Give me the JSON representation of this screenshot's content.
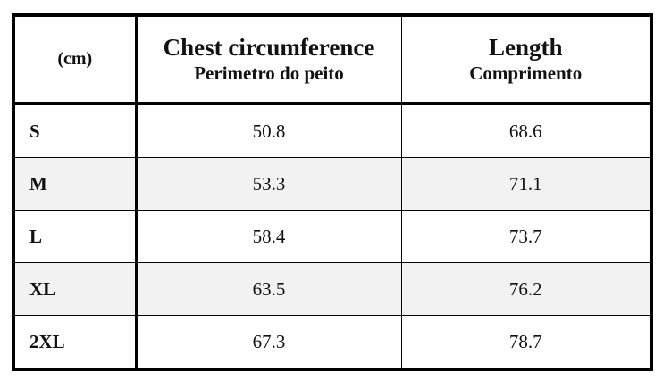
{
  "table": {
    "header": [
      "(cm)",
      {
        "title": "Chest circumference",
        "subtitle": "Perimetro do peito"
      },
      {
        "title": "Length",
        "subtitle": "Comprimento"
      }
    ],
    "rows": [
      [
        "S",
        50.8,
        68.6
      ],
      [
        "M",
        53.3,
        71.1
      ],
      [
        "L",
        58.4,
        73.7
      ],
      [
        "XL",
        63.5,
        76.2
      ],
      [
        "2XL",
        67.3,
        78.7
      ]
    ]
  }
}
